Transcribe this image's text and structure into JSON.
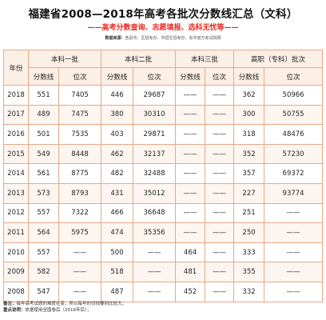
{
  "title": "福建省2008—2018年高考各批次分数线汇总（文科）",
  "subtitle": "——高考分数查询、志愿填报、选科无忧等——",
  "source": {
    "label": "数据来源：",
    "text": "各县市、区招考办、市招生招考办、省市官方考试院网"
  },
  "table": {
    "year_header": "年份",
    "groups": [
      "本科一批",
      "本科二批",
      "本科三批",
      "高职（专科）批次"
    ],
    "sub_headers": [
      "分数线",
      "位次",
      "分数线",
      "位次",
      "分数线",
      "位次",
      "分数线",
      "位次"
    ],
    "rows": [
      [
        "2018",
        "551",
        "7405",
        "446",
        "29687",
        "——",
        "——",
        "362",
        "50966"
      ],
      [
        "2017",
        "489",
        "7475",
        "380",
        "30310",
        "——",
        "——",
        "300",
        "50755"
      ],
      [
        "2016",
        "501",
        "7535",
        "403",
        "29871",
        "——",
        "——",
        "318",
        "48476"
      ],
      [
        "2015",
        "549",
        "8448",
        "462",
        "32137",
        "——",
        "——",
        "352",
        "57230"
      ],
      [
        "2014",
        "561",
        "8775",
        "482",
        "32488",
        "——",
        "——",
        "357",
        "69372"
      ],
      [
        "2013",
        "573",
        "8793",
        "431",
        "35012",
        "——",
        "——",
        "227",
        "93774"
      ],
      [
        "2012",
        "557",
        "7322",
        "466",
        "36648",
        "——",
        "——",
        "251",
        "——"
      ],
      [
        "2011",
        "564",
        "5975",
        "474",
        "35356",
        "——",
        "——",
        "250",
        "——"
      ],
      [
        "2010",
        "557",
        "——",
        "500",
        "——",
        "464",
        "——",
        "333",
        "——"
      ],
      [
        "2009",
        "582",
        "——",
        "518",
        "——",
        "481",
        "——",
        "355",
        "——"
      ],
      [
        "2008",
        "547",
        "——",
        "487",
        "——",
        "452",
        "——",
        "332",
        "——"
      ]
    ]
  },
  "notes": [
    {
      "label": "备注：",
      "text": "每年高考试题的难度在变，所以每年的切线要别比较大；"
    },
    {
      "label": "重点说明：",
      "text": "依据使用全国卷后（2016年后）；"
    }
  ]
}
